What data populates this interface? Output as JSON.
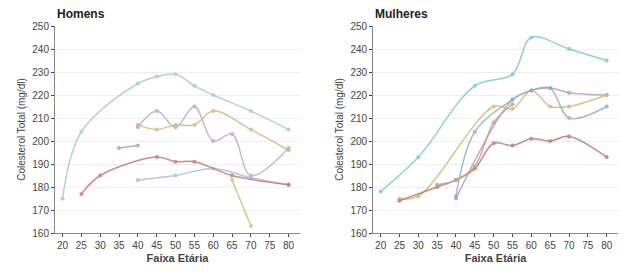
{
  "chart_data": [
    {
      "type": "line",
      "title": "Homens",
      "x_label": "Faixa Etária",
      "y_label": "Colesterol Total (mg/dl)",
      "xlim": [
        18,
        83
      ],
      "xticks": [
        20,
        25,
        30,
        35,
        40,
        45,
        50,
        55,
        60,
        65,
        70,
        75,
        80
      ],
      "ylim": [
        160,
        250
      ],
      "yticks": [
        160,
        170,
        180,
        190,
        200,
        210,
        220,
        230,
        240,
        250
      ],
      "grid": "y",
      "marker": "circle",
      "series": [
        {
          "color": "#a0cfc0",
          "x": [
            20,
            25,
            40,
            45,
            50,
            55,
            60,
            70,
            80
          ],
          "values": [
            175,
            204,
            225,
            228,
            229,
            224,
            220,
            213,
            205
          ]
        },
        {
          "color": "#c0a8cc",
          "x": [
            40,
            45,
            50,
            55,
            60,
            65,
            70,
            80
          ],
          "values": [
            206,
            213,
            206,
            215,
            200,
            203,
            185,
            197
          ]
        },
        {
          "color": "#d4b87a",
          "x": [
            40,
            45,
            50,
            55,
            60,
            70,
            80
          ],
          "values": [
            207,
            205,
            207,
            207,
            213,
            205,
            196
          ]
        },
        {
          "color": "#aabcdc",
          "x": [
            40,
            50,
            60,
            70,
            80
          ],
          "values": [
            183,
            185,
            188,
            184,
            181
          ]
        },
        {
          "color": "#c87878",
          "x": [
            25,
            30,
            45,
            50,
            55,
            65,
            80
          ],
          "values": [
            177,
            185,
            193,
            191,
            191,
            185,
            181
          ]
        },
        {
          "color": "#90b888",
          "x": [
            35,
            40
          ],
          "values": [
            197,
            198
          ]
        },
        {
          "color": "#c8c870",
          "x": [
            65,
            70
          ],
          "values": [
            183,
            163
          ]
        }
      ]
    },
    {
      "type": "line",
      "title": "Mulheres",
      "x_label": "Faixa Etária",
      "y_label": "Colesterol Total (mg/dl)",
      "xlim": [
        18,
        83
      ],
      "xticks": [
        20,
        25,
        30,
        35,
        40,
        45,
        50,
        55,
        60,
        65,
        70,
        75,
        80
      ],
      "ylim": [
        160,
        250
      ],
      "yticks": [
        160,
        170,
        180,
        190,
        200,
        210,
        220,
        230,
        240,
        250
      ],
      "grid": "y",
      "marker": "circle",
      "series": [
        {
          "color": "#78c8d8",
          "x": [
            20,
            30,
            45,
            55,
            60,
            70,
            80
          ],
          "values": [
            178,
            193,
            224,
            229,
            245,
            240,
            235
          ]
        },
        {
          "color": "#b898c8",
          "x": [
            40,
            55,
            60,
            65,
            70,
            80
          ],
          "values": [
            175,
            218,
            222,
            223,
            221,
            220
          ]
        },
        {
          "color": "#d4b870",
          "x": [
            25,
            30,
            50,
            55,
            60,
            65,
            70,
            80
          ],
          "values": [
            175,
            176,
            215,
            214,
            222,
            215,
            215,
            220
          ]
        },
        {
          "color": "#b87878",
          "x": [
            25,
            35,
            40,
            45,
            50,
            55,
            60,
            65,
            70,
            80
          ],
          "values": [
            174,
            180,
            183,
            188,
            199,
            198,
            201,
            200,
            202,
            193
          ]
        },
        {
          "color": "#c8a080",
          "x": [
            35,
            40,
            45,
            50,
            55
          ],
          "values": [
            181,
            183,
            189,
            208,
            216
          ]
        },
        {
          "color": "#8cb0c8",
          "x": [
            40,
            45,
            55,
            60,
            65,
            70,
            80
          ],
          "values": [
            176,
            204,
            218,
            222,
            223,
            210,
            215
          ]
        }
      ]
    }
  ]
}
